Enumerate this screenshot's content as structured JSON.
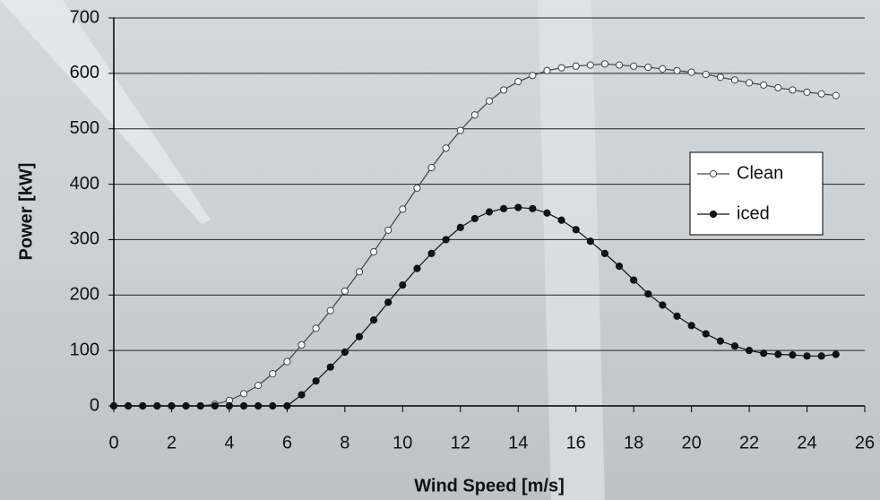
{
  "chart_data": {
    "type": "line",
    "xlabel": "Wind Speed [m/s]",
    "ylabel": "Power [kW]",
    "x": [
      0,
      0.5,
      1,
      1.5,
      2,
      2.5,
      3,
      3.5,
      4,
      4.5,
      5,
      5.5,
      6,
      6.5,
      7,
      7.5,
      8,
      8.5,
      9,
      9.5,
      10,
      10.5,
      11,
      11.5,
      12,
      12.5,
      13,
      13.5,
      14,
      14.5,
      15,
      15.5,
      16,
      16.5,
      17,
      17.5,
      18,
      18.5,
      19,
      19.5,
      20,
      20.5,
      21,
      21.5,
      22,
      22.5,
      23,
      23.5,
      24,
      24.5,
      25
    ],
    "series": [
      {
        "name": "Clean",
        "color": "#444444",
        "marker_fill": "#ffffff",
        "values": [
          0,
          0,
          0,
          0,
          0,
          0,
          0,
          3,
          10,
          22,
          37,
          58,
          80,
          110,
          140,
          172,
          207,
          242,
          278,
          317,
          355,
          393,
          430,
          465,
          497,
          525,
          550,
          570,
          585,
          596,
          605,
          610,
          613,
          615,
          617,
          615,
          613,
          611,
          608,
          605,
          602,
          598,
          593,
          588,
          583,
          579,
          574,
          570,
          566,
          563,
          560
        ]
      },
      {
        "name": "iced",
        "color": "#111111",
        "marker_fill": "#111111",
        "values": [
          0,
          0,
          0,
          0,
          0,
          0,
          0,
          0,
          0,
          0,
          0,
          0,
          0,
          20,
          45,
          70,
          97,
          125,
          155,
          187,
          218,
          248,
          275,
          300,
          322,
          338,
          350,
          356,
          358,
          356,
          348,
          335,
          318,
          297,
          275,
          252,
          227,
          202,
          182,
          162,
          145,
          130,
          117,
          108,
          100,
          95,
          93,
          92,
          90,
          90,
          93
        ]
      }
    ],
    "xlim": [
      0,
      26
    ],
    "xticks": [
      0,
      2,
      4,
      6,
      8,
      10,
      12,
      14,
      16,
      18,
      20,
      22,
      24,
      26
    ],
    "ylim": [
      0,
      700
    ],
    "yticks": [
      0,
      100,
      200,
      300,
      400,
      500,
      600,
      700
    ],
    "grid": true,
    "legend": "right"
  }
}
